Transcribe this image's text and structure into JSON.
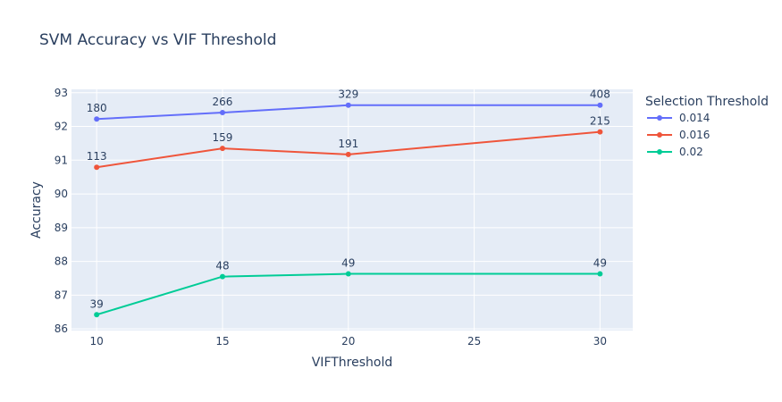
{
  "chart_data": {
    "type": "line",
    "title": "SVM Accuracy vs VIF Threshold",
    "xlabel": "VIFThreshold",
    "ylabel": "Accuracy",
    "x": [
      10,
      15,
      20,
      30
    ],
    "xticks": [
      10,
      15,
      20,
      25,
      30
    ],
    "xlim": [
      9,
      31.3
    ],
    "yticks": [
      86,
      87,
      88,
      89,
      90,
      91,
      92,
      93
    ],
    "ylim": [
      85.95,
      93.1
    ],
    "grid": true,
    "legend_title": "Selection Threshold",
    "legend_position": "right",
    "plot_bg": "#E5ECF6",
    "series": [
      {
        "name": "0.014",
        "color": "#636EFA",
        "values": [
          92.22,
          92.41,
          92.63,
          92.63
        ],
        "labels": [
          "180",
          "266",
          "329",
          "408"
        ]
      },
      {
        "name": "0.016",
        "color": "#EF553B",
        "values": [
          90.79,
          91.35,
          91.17,
          91.84
        ],
        "labels": [
          "113",
          "159",
          "191",
          "215"
        ]
      },
      {
        "name": "0.02",
        "color": "#00CC96",
        "values": [
          86.42,
          87.55,
          87.63,
          87.63
        ],
        "labels": [
          "39",
          "48",
          "49",
          "49"
        ]
      }
    ]
  }
}
